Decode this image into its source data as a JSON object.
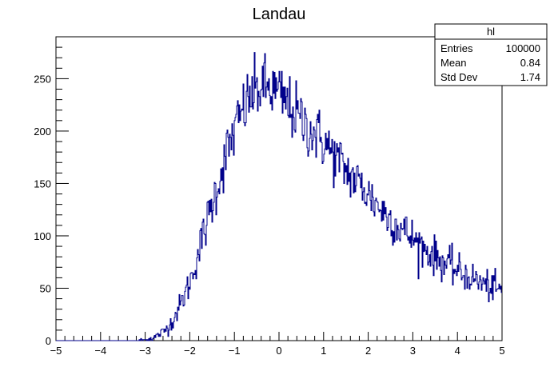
{
  "chart_data": {
    "type": "bar",
    "title": "Landau",
    "xlabel": "",
    "ylabel": "",
    "xlim": [
      -5,
      5
    ],
    "ylim": [
      0,
      290
    ],
    "grid": false,
    "legend": "none",
    "x_ticks": [
      -5,
      -4,
      -3,
      -2,
      -1,
      0,
      1,
      2,
      3,
      4,
      5
    ],
    "y_ticks": [
      0,
      50,
      100,
      150,
      200,
      250
    ],
    "line_color": "#00008b",
    "series": [
      {
        "x": [
          -5.0,
          -4.5,
          -4.0,
          -3.5,
          -3.2,
          -3.0,
          -2.8,
          -2.6,
          -2.4,
          -2.2,
          -2.0,
          -1.8,
          -1.6,
          -1.4,
          -1.2,
          -1.0,
          -0.8,
          -0.6,
          -0.4,
          -0.2,
          0.0,
          0.2,
          0.4,
          0.6,
          0.8,
          1.0,
          1.2,
          1.4,
          1.6,
          1.8,
          2.0,
          2.2,
          2.4,
          2.6,
          2.8,
          3.0,
          3.2,
          3.4,
          3.6,
          3.8,
          4.0,
          4.2,
          4.4,
          4.6,
          4.8,
          5.0
        ],
        "values": [
          0,
          0,
          0,
          0,
          0,
          1,
          3,
          8,
          18,
          35,
          55,
          85,
          115,
          145,
          175,
          200,
          220,
          235,
          242,
          240,
          235,
          225,
          215,
          205,
          198,
          190,
          178,
          168,
          158,
          150,
          140,
          130,
          120,
          112,
          105,
          97,
          90,
          83,
          77,
          72,
          67,
          62,
          58,
          54,
          50,
          47
        ]
      }
    ],
    "stats_box": {
      "name": "hl",
      "rows": [
        {
          "label": "Entries",
          "value": "100000"
        },
        {
          "label": "Mean",
          "value": "0.84"
        },
        {
          "label": "Std Dev",
          "value": "1.74"
        }
      ]
    }
  }
}
